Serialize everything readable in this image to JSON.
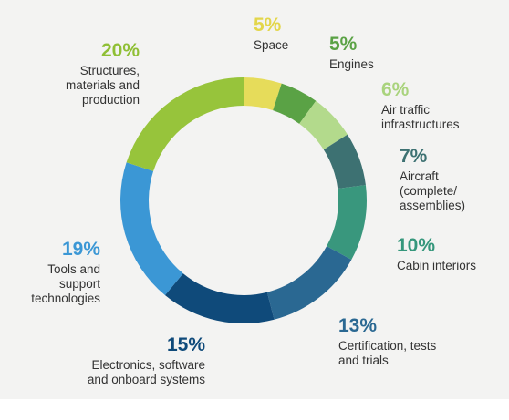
{
  "chart_data": {
    "type": "pie",
    "donut": true,
    "title": "",
    "slices": [
      {
        "label": "Space",
        "value": 5,
        "value_label": "5%",
        "color": "#e6dc5a",
        "label_color": "#e3d64a"
      },
      {
        "label": "Engines",
        "value": 5,
        "value_label": "5%",
        "color": "#5aa245",
        "label_color": "#5aa245"
      },
      {
        "label": "Air traffic\ninfrastructures",
        "value": 6,
        "value_label": "6%",
        "color": "#b3da8c",
        "label_color": "#a9d37d"
      },
      {
        "label": "Aircraft\n(complete/\nassemblies)",
        "value": 7,
        "value_label": "7%",
        "color": "#3d7172",
        "label_color": "#3d7172"
      },
      {
        "label": "Cabin interiors",
        "value": 10,
        "value_label": "10%",
        "color": "#39977d",
        "label_color": "#35977c"
      },
      {
        "label": "Certification, tests\nand trials",
        "value": 13,
        "value_label": "13%",
        "color": "#2a6892",
        "label_color": "#2a6892"
      },
      {
        "label": "Electronics, software\nand onboard systems",
        "value": 15,
        "value_label": "15%",
        "color": "#0f4a7a",
        "label_color": "#0f4a7a"
      },
      {
        "label": "Tools and\nsupport\ntechnologies",
        "value": 19,
        "value_label": "19%",
        "color": "#3b97d5",
        "label_color": "#3b97d5"
      },
      {
        "label": "Structures,\nmaterials and\nproduction",
        "value": 20,
        "value_label": "20%",
        "color": "#97c43b",
        "label_color": "#8fbf35"
      }
    ]
  }
}
